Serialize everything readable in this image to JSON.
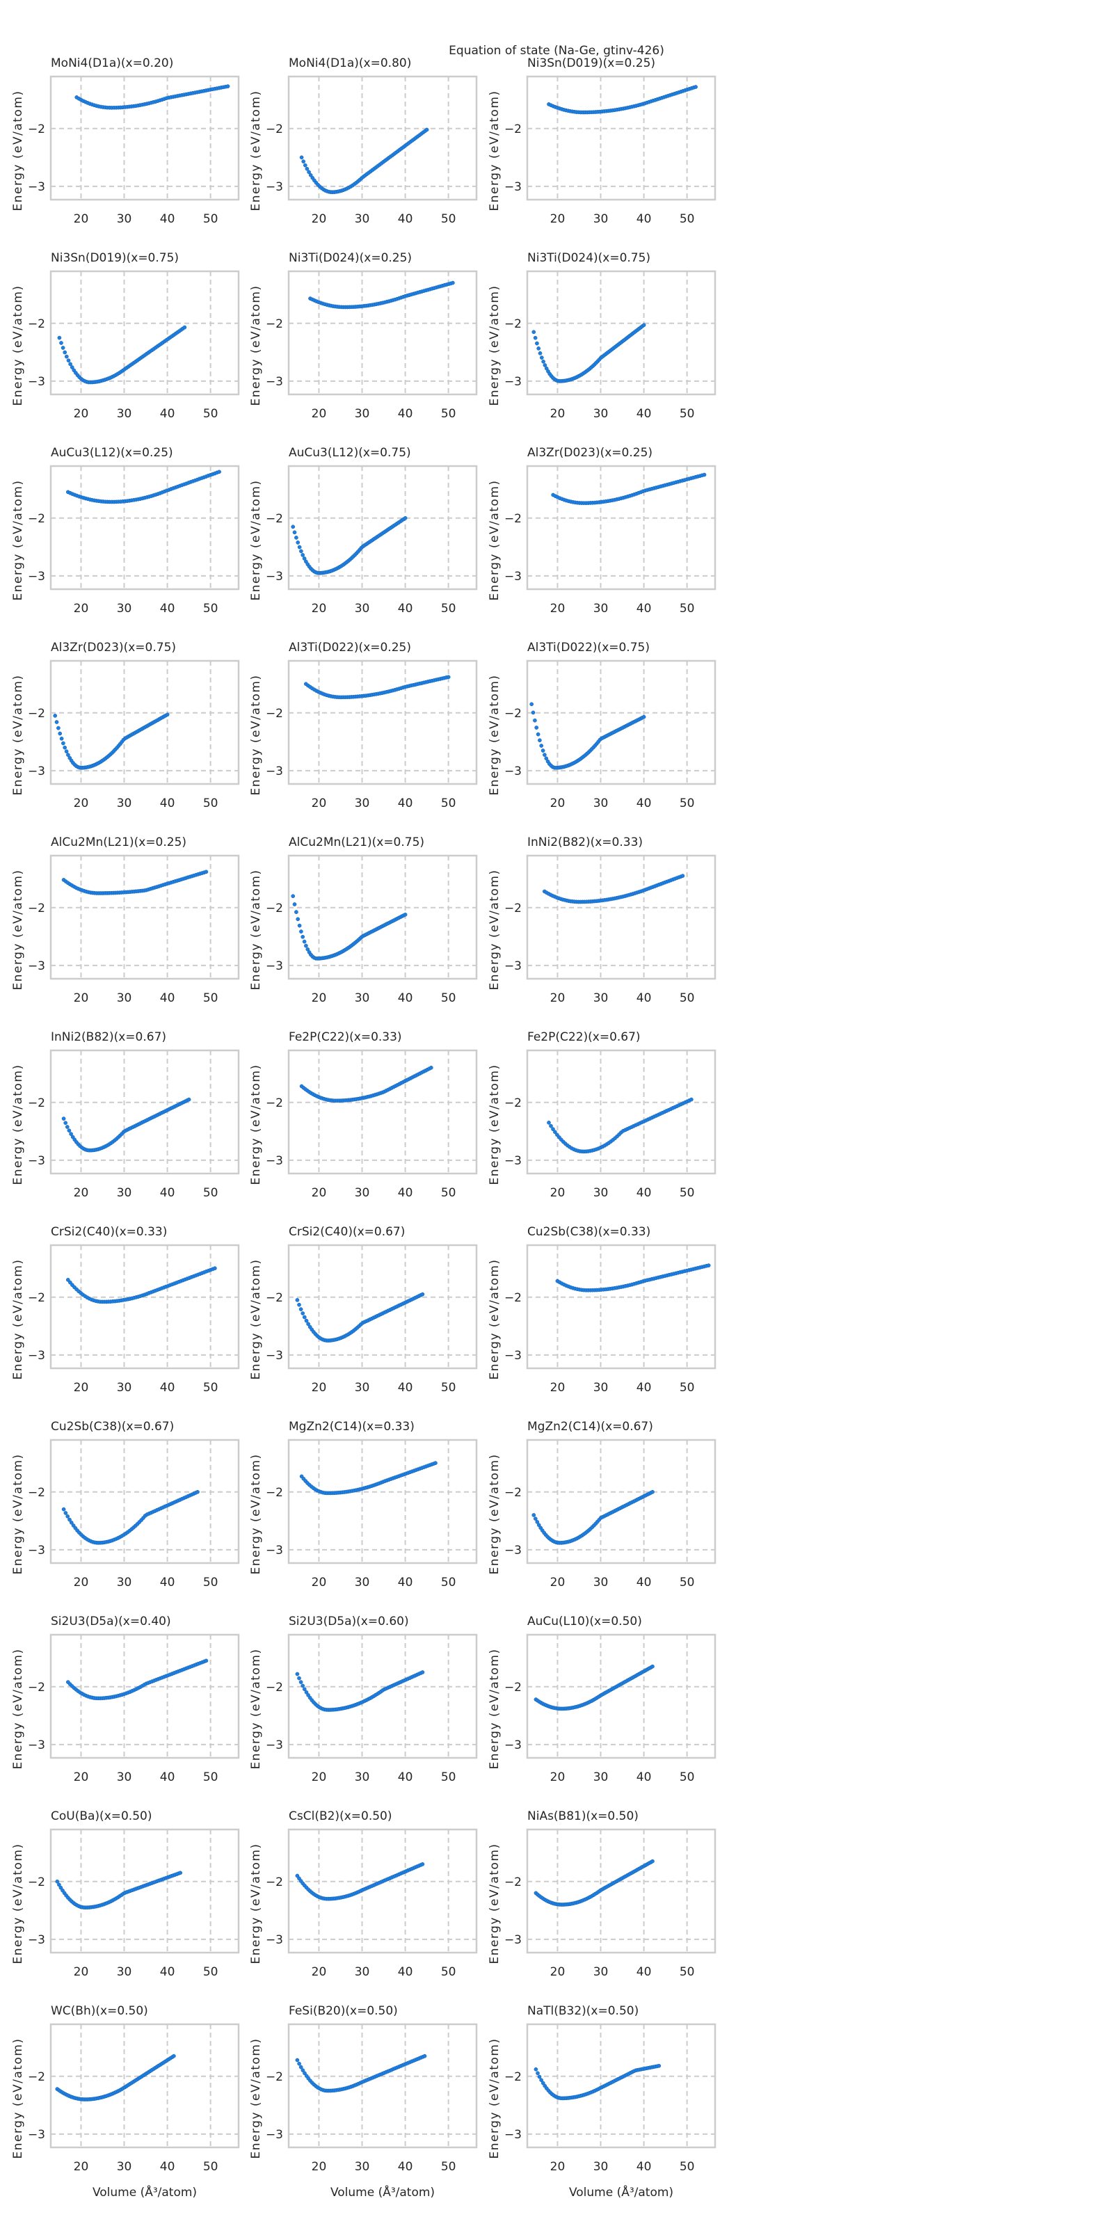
{
  "chart_data": {
    "type": "scatter",
    "title": "Equation of state (Na-Ge, gtinv-426)",
    "xlabel": "Volume (Å³/atom)",
    "ylabel": "Energy (eV/atom)",
    "xlim": [
      13,
      56.5
    ],
    "ylim": [
      -3.23,
      -1.1
    ],
    "xticks": [
      20,
      30,
      40,
      50
    ],
    "yticks": [
      -2,
      -3
    ],
    "xtick_labels": [
      "20",
      "30",
      "40",
      "50"
    ],
    "ytick_labels": [
      "−2",
      "−3"
    ],
    "grid": true,
    "marker_color": "#1f7fe0",
    "subplots": [
      {
        "title": "MoNi4(D1a)(x=0.20)",
        "points": [
          [
            19,
            -1.46
          ],
          [
            27,
            -1.64
          ],
          [
            40,
            -1.47
          ],
          [
            54,
            -1.27
          ]
        ]
      },
      {
        "title": "MoNi4(D1a)(x=0.80)",
        "points": [
          [
            16,
            -2.5
          ],
          [
            23,
            -3.1
          ],
          [
            30,
            -2.85
          ],
          [
            45,
            -2.02
          ]
        ]
      },
      {
        "title": "Ni3Sn(D019)(x=0.25)",
        "points": [
          [
            18,
            -1.58
          ],
          [
            26,
            -1.72
          ],
          [
            40,
            -1.57
          ],
          [
            52,
            -1.28
          ]
        ]
      },
      {
        "title": "Ni3Sn(D019)(x=0.75)",
        "points": [
          [
            15,
            -2.25
          ],
          [
            22,
            -3.02
          ],
          [
            30,
            -2.8
          ],
          [
            44,
            -2.07
          ]
        ]
      },
      {
        "title": "Ni3Ti(D024)(x=0.25)",
        "points": [
          [
            18,
            -1.57
          ],
          [
            26,
            -1.72
          ],
          [
            40,
            -1.53
          ],
          [
            51,
            -1.3
          ]
        ]
      },
      {
        "title": "Ni3Ti(D024)(x=0.75)",
        "points": [
          [
            14.5,
            -2.15
          ],
          [
            20.5,
            -3.0
          ],
          [
            30,
            -2.6
          ],
          [
            40,
            -2.03
          ]
        ]
      },
      {
        "title": "AuCu3(L12)(x=0.25)",
        "points": [
          [
            17,
            -1.55
          ],
          [
            27,
            -1.72
          ],
          [
            40,
            -1.52
          ],
          [
            52,
            -1.2
          ]
        ]
      },
      {
        "title": "AuCu3(L12)(x=0.75)",
        "points": [
          [
            14,
            -2.15
          ],
          [
            20,
            -2.95
          ],
          [
            30,
            -2.5
          ],
          [
            40,
            -2.0
          ]
        ]
      },
      {
        "title": "Al3Zr(D023)(x=0.25)",
        "points": [
          [
            19,
            -1.6
          ],
          [
            26,
            -1.74
          ],
          [
            40,
            -1.53
          ],
          [
            54,
            -1.25
          ]
        ]
      },
      {
        "title": "Al3Zr(D023)(x=0.75)",
        "points": [
          [
            14,
            -2.05
          ],
          [
            20,
            -2.95
          ],
          [
            30,
            -2.45
          ],
          [
            40,
            -2.03
          ]
        ]
      },
      {
        "title": "Al3Ti(D022)(x=0.25)",
        "points": [
          [
            17,
            -1.5
          ],
          [
            25,
            -1.73
          ],
          [
            40,
            -1.55
          ],
          [
            50,
            -1.38
          ]
        ]
      },
      {
        "title": "Al3Ti(D022)(x=0.75)",
        "points": [
          [
            14,
            -1.85
          ],
          [
            19.5,
            -2.95
          ],
          [
            30,
            -2.45
          ],
          [
            40,
            -2.07
          ]
        ]
      },
      {
        "title": "AlCu2Mn(L21)(x=0.25)",
        "points": [
          [
            16,
            -1.52
          ],
          [
            24,
            -1.75
          ],
          [
            35,
            -1.7
          ],
          [
            49,
            -1.38
          ]
        ]
      },
      {
        "title": "AlCu2Mn(L21)(x=0.75)",
        "points": [
          [
            14,
            -1.8
          ],
          [
            19.5,
            -2.88
          ],
          [
            30,
            -2.5
          ],
          [
            40,
            -2.12
          ]
        ]
      },
      {
        "title": "InNi2(B82)(x=0.33)",
        "points": [
          [
            17,
            -1.72
          ],
          [
            25,
            -1.9
          ],
          [
            40,
            -1.7
          ],
          [
            49,
            -1.45
          ]
        ]
      },
      {
        "title": "InNi2(B82)(x=0.67)",
        "points": [
          [
            16,
            -2.28
          ],
          [
            22,
            -2.83
          ],
          [
            30,
            -2.5
          ],
          [
            45,
            -1.95
          ]
        ]
      },
      {
        "title": "Fe2P(C22)(x=0.33)",
        "points": [
          [
            16,
            -1.72
          ],
          [
            24,
            -1.97
          ],
          [
            35,
            -1.82
          ],
          [
            46,
            -1.4
          ]
        ]
      },
      {
        "title": "Fe2P(C22)(x=0.67)",
        "points": [
          [
            18,
            -2.35
          ],
          [
            26,
            -2.85
          ],
          [
            35,
            -2.5
          ],
          [
            51,
            -1.95
          ]
        ]
      },
      {
        "title": "CrSi2(C40)(x=0.33)",
        "points": [
          [
            17,
            -1.7
          ],
          [
            25,
            -2.08
          ],
          [
            35,
            -1.95
          ],
          [
            51,
            -1.5
          ]
        ]
      },
      {
        "title": "CrSi2(C40)(x=0.67)",
        "points": [
          [
            15,
            -2.05
          ],
          [
            22,
            -2.75
          ],
          [
            30,
            -2.45
          ],
          [
            44,
            -1.95
          ]
        ]
      },
      {
        "title": "Cu2Sb(C38)(x=0.33)",
        "points": [
          [
            20,
            -1.72
          ],
          [
            27,
            -1.88
          ],
          [
            40,
            -1.72
          ],
          [
            55,
            -1.45
          ]
        ]
      },
      {
        "title": "Cu2Sb(C38)(x=0.67)",
        "points": [
          [
            16,
            -2.3
          ],
          [
            24,
            -2.88
          ],
          [
            35,
            -2.4
          ],
          [
            47,
            -2.0
          ]
        ]
      },
      {
        "title": "MgZn2(C14)(x=0.33)",
        "points": [
          [
            16,
            -1.73
          ],
          [
            22,
            -2.02
          ],
          [
            35,
            -1.82
          ],
          [
            47,
            -1.5
          ]
        ]
      },
      {
        "title": "MgZn2(C14)(x=0.67)",
        "points": [
          [
            14.5,
            -2.4
          ],
          [
            20.5,
            -2.88
          ],
          [
            30,
            -2.45
          ],
          [
            42,
            -2.0
          ]
        ]
      },
      {
        "title": "Si2U3(D5a)(x=0.40)",
        "points": [
          [
            17,
            -1.92
          ],
          [
            24,
            -2.2
          ],
          [
            35,
            -1.95
          ],
          [
            49,
            -1.55
          ]
        ]
      },
      {
        "title": "Si2U3(D5a)(x=0.60)",
        "points": [
          [
            15,
            -1.78
          ],
          [
            22,
            -2.4
          ],
          [
            35,
            -2.05
          ],
          [
            44,
            -1.75
          ]
        ]
      },
      {
        "title": "AuCu(L10)(x=0.50)",
        "points": [
          [
            15,
            -2.22
          ],
          [
            21,
            -2.38
          ],
          [
            30,
            -2.15
          ],
          [
            42,
            -1.65
          ]
        ]
      },
      {
        "title": "CoU(Ba)(x=0.50)",
        "points": [
          [
            14.5,
            -2.0
          ],
          [
            21,
            -2.45
          ],
          [
            30,
            -2.2
          ],
          [
            43,
            -1.85
          ]
        ]
      },
      {
        "title": "CsCl(B2)(x=0.50)",
        "points": [
          [
            15,
            -1.9
          ],
          [
            22,
            -2.3
          ],
          [
            30,
            -2.15
          ],
          [
            44,
            -1.7
          ]
        ]
      },
      {
        "title": "NiAs(B81)(x=0.50)",
        "points": [
          [
            15,
            -2.2
          ],
          [
            21,
            -2.4
          ],
          [
            30,
            -2.15
          ],
          [
            42,
            -1.65
          ]
        ]
      },
      {
        "title": "WC(Bh)(x=0.50)",
        "points": [
          [
            14.5,
            -2.22
          ],
          [
            21,
            -2.4
          ],
          [
            29.5,
            -2.22
          ],
          [
            41.5,
            -1.65
          ]
        ]
      },
      {
        "title": "FeSi(B20)(x=0.50)",
        "points": [
          [
            15,
            -1.72
          ],
          [
            22,
            -2.25
          ],
          [
            30,
            -2.1
          ],
          [
            44.5,
            -1.65
          ]
        ]
      },
      {
        "title": "NaTl(B32)(x=0.50)",
        "points": [
          [
            15,
            -1.88
          ],
          [
            21,
            -2.38
          ],
          [
            30,
            -2.2
          ],
          [
            38,
            -1.9
          ],
          [
            43.5,
            -1.82
          ]
        ]
      }
    ]
  }
}
